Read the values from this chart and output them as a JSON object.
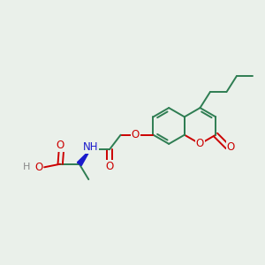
{
  "bg_color": "#eaf0ea",
  "bond_color": "#2e7d52",
  "bond_width": 1.4,
  "atom_colors": {
    "O": "#cc0000",
    "N": "#1a1acc",
    "H_gray": "#888888"
  },
  "figsize": [
    3.0,
    3.0
  ],
  "dpi": 100,
  "xlim": [
    0,
    10
  ],
  "ylim": [
    0,
    10
  ]
}
